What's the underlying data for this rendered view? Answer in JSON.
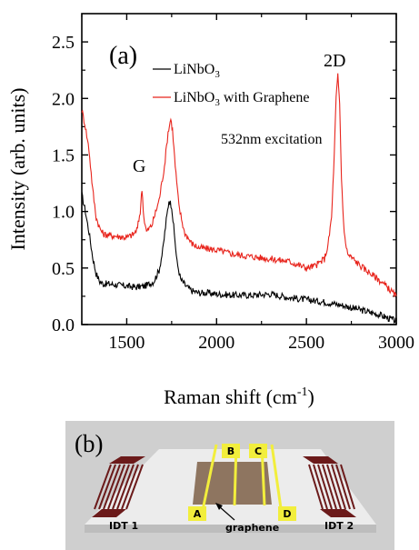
{
  "chart_data": {
    "type": "line",
    "panel_label": "(a)",
    "xlabel_main": "Raman shift (cm",
    "xlabel_sup": "-1",
    "xlabel_close": ")",
    "ylabel": "Intensity (arb. units)",
    "xlim": [
      1250,
      3000
    ],
    "ylim": [
      0,
      2.75
    ],
    "xticks": [
      "1500",
      "2000",
      "2500",
      "3000"
    ],
    "xtick_values": [
      1500,
      2000,
      2500,
      3000
    ],
    "yticks": [
      "0.0",
      "0.5",
      "1.0",
      "1.5",
      "2.0",
      "2.5"
    ],
    "ytick_values": [
      0,
      0.5,
      1.0,
      1.5,
      2.0,
      2.5
    ],
    "legend_position": "top-center",
    "annotations": [
      {
        "text": "G",
        "x": 1580,
        "y": 1.35
      },
      {
        "text": "2D",
        "x": 2680,
        "y": 2.4
      },
      {
        "text": "532nm excitation",
        "x": 2250,
        "y": 1.55
      }
    ],
    "series": [
      {
        "name_main": "LiNbO",
        "name_sub": "3",
        "name_rest": "",
        "color": "#000000",
        "x": [
          1250,
          1270,
          1290,
          1310,
          1330,
          1350,
          1370,
          1400,
          1450,
          1500,
          1550,
          1600,
          1650,
          1680,
          1700,
          1720,
          1735,
          1750,
          1765,
          1780,
          1800,
          1830,
          1860,
          1900,
          1950,
          2000,
          2100,
          2200,
          2300,
          2400,
          2500,
          2600,
          2700,
          2800,
          2900,
          3000
        ],
        "y": [
          1.15,
          1.0,
          0.82,
          0.6,
          0.45,
          0.38,
          0.36,
          0.36,
          0.35,
          0.34,
          0.33,
          0.34,
          0.38,
          0.48,
          0.65,
          0.92,
          1.1,
          1.05,
          0.8,
          0.55,
          0.4,
          0.34,
          0.3,
          0.28,
          0.28,
          0.27,
          0.26,
          0.26,
          0.27,
          0.24,
          0.22,
          0.2,
          0.17,
          0.13,
          0.09,
          0.03
        ]
      },
      {
        "name_main": "LiNbO",
        "name_sub": "3",
        "name_rest": " with Graphene",
        "color": "#e8241c",
        "x": [
          1250,
          1270,
          1290,
          1310,
          1330,
          1350,
          1370,
          1400,
          1450,
          1500,
          1540,
          1560,
          1575,
          1585,
          1595,
          1610,
          1640,
          1680,
          1710,
          1730,
          1745,
          1755,
          1770,
          1790,
          1820,
          1860,
          1900,
          2000,
          2100,
          2200,
          2300,
          2400,
          2500,
          2550,
          2600,
          2620,
          2640,
          2655,
          2665,
          2675,
          2685,
          2695,
          2710,
          2730,
          2760,
          2800,
          2850,
          2900,
          2950,
          3000
        ],
        "y": [
          1.9,
          1.75,
          1.55,
          1.2,
          0.95,
          0.85,
          0.8,
          0.79,
          0.78,
          0.77,
          0.8,
          0.85,
          1.0,
          1.2,
          0.95,
          0.82,
          0.88,
          1.1,
          1.4,
          1.7,
          1.82,
          1.72,
          1.4,
          1.05,
          0.82,
          0.72,
          0.68,
          0.66,
          0.62,
          0.6,
          0.58,
          0.56,
          0.5,
          0.52,
          0.58,
          0.7,
          0.95,
          1.5,
          2.0,
          2.2,
          1.95,
          1.3,
          0.8,
          0.62,
          0.58,
          0.52,
          0.46,
          0.4,
          0.33,
          0.25
        ]
      }
    ]
  },
  "schematic": {
    "panel_label": "(b)",
    "electrode_labels": [
      "A",
      "B",
      "C",
      "D"
    ],
    "idt_left_label": "IDT 1",
    "idt_right_label": "IDT 2",
    "graphene_label": "graphene",
    "colors": {
      "background": "#cfcfcf",
      "platform_top": "#ececec",
      "platform_side": "#bdbdbd",
      "electrode": "#f2ee3c",
      "graphene": "#8e7560",
      "idt_bar": "#6b1a1a",
      "idt_finger": "#ffffff"
    }
  }
}
